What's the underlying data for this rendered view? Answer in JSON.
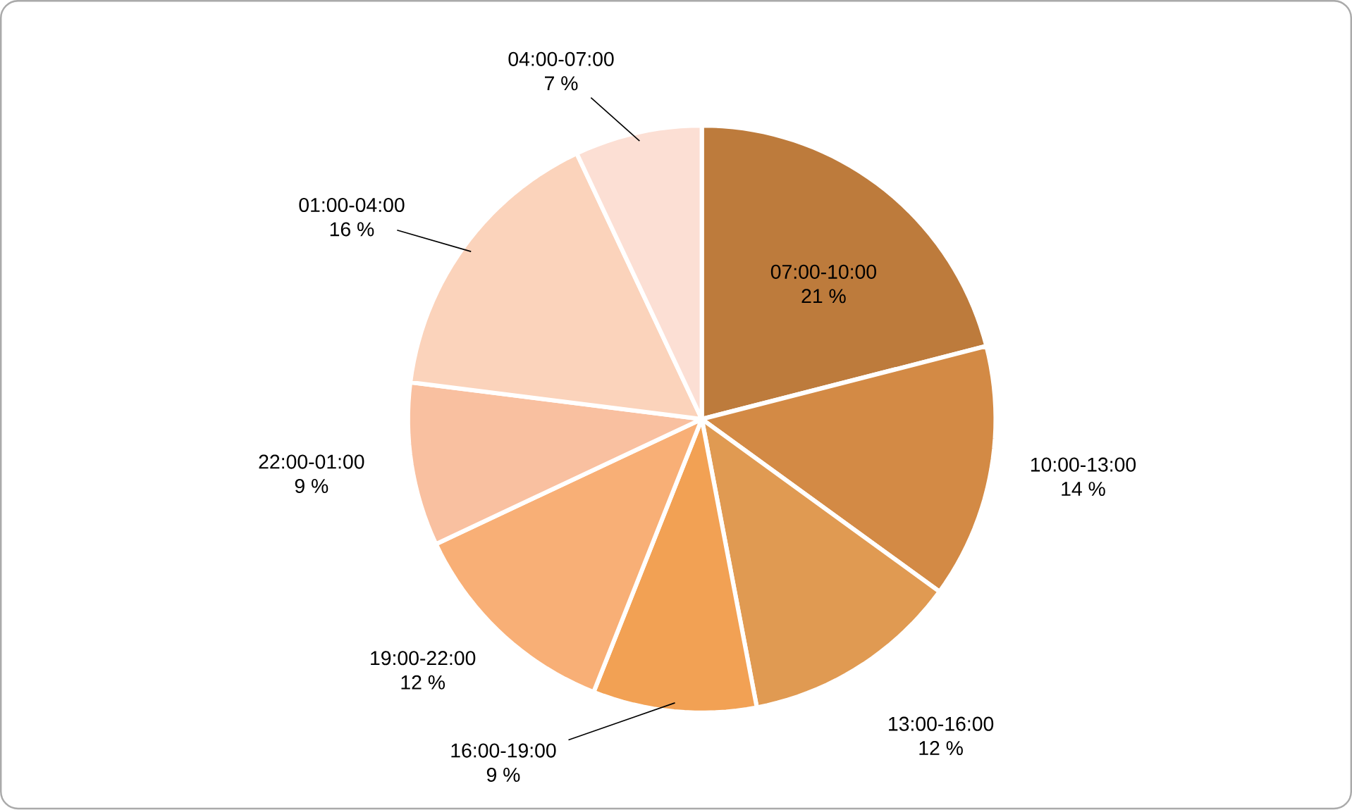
{
  "chart_data": {
    "type": "pie",
    "categories": [
      "07:00-10:00",
      "10:00-13:00",
      "13:00-16:00",
      "16:00-19:00",
      "19:00-22:00",
      "22:00-01:00",
      "01:00-04:00",
      "04:00-07:00"
    ],
    "values": [
      21,
      14,
      12,
      9,
      12,
      9,
      16,
      7
    ],
    "value_labels": [
      "21 %",
      "14 %",
      "12 %",
      "9 %",
      "12 %",
      "9 %",
      "16 %",
      "7 %"
    ],
    "colors": [
      "#bd7b3c",
      "#d38a45",
      "#e09a52",
      "#f2a154",
      "#f8af76",
      "#f9c0a0",
      "#fbd3bb",
      "#fcdfd4"
    ],
    "legend": false
  }
}
